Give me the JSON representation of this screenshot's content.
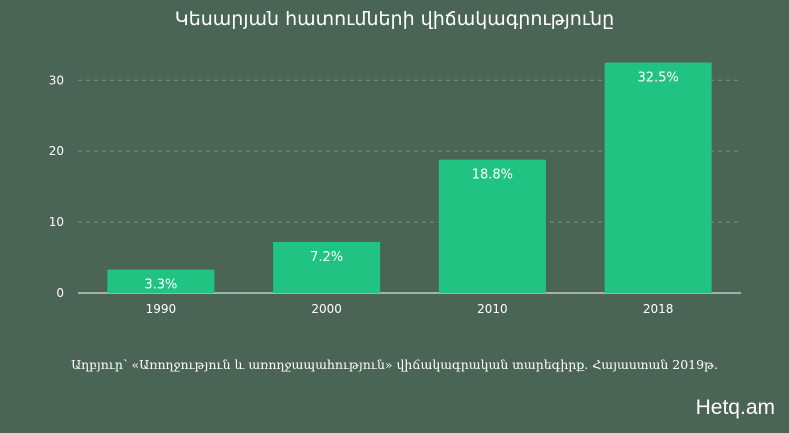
{
  "title": "Կեսարյան հատումների վիճակագրությունը",
  "source": "Աղբյուր՝ «Առողջություն և առողջապահություն» վիճակագրական տարեգիրք. Հայաստան 2019թ.",
  "brand": "Hetq.am",
  "colors": {
    "background": "#4a6456",
    "bar": "#21c383",
    "text": "#ffffff",
    "grid": "#8fa398"
  },
  "chart_data": {
    "type": "bar",
    "categories": [
      "1990",
      "2000",
      "2010",
      "2018"
    ],
    "values": [
      3.3,
      7.2,
      18.8,
      32.5
    ],
    "data_labels": [
      "3.3%",
      "7.2%",
      "18.8%",
      "32.5%"
    ],
    "yticks": [
      0,
      10,
      20,
      30
    ],
    "ylim": [
      0,
      33
    ],
    "grid": "horizontal dashed"
  }
}
